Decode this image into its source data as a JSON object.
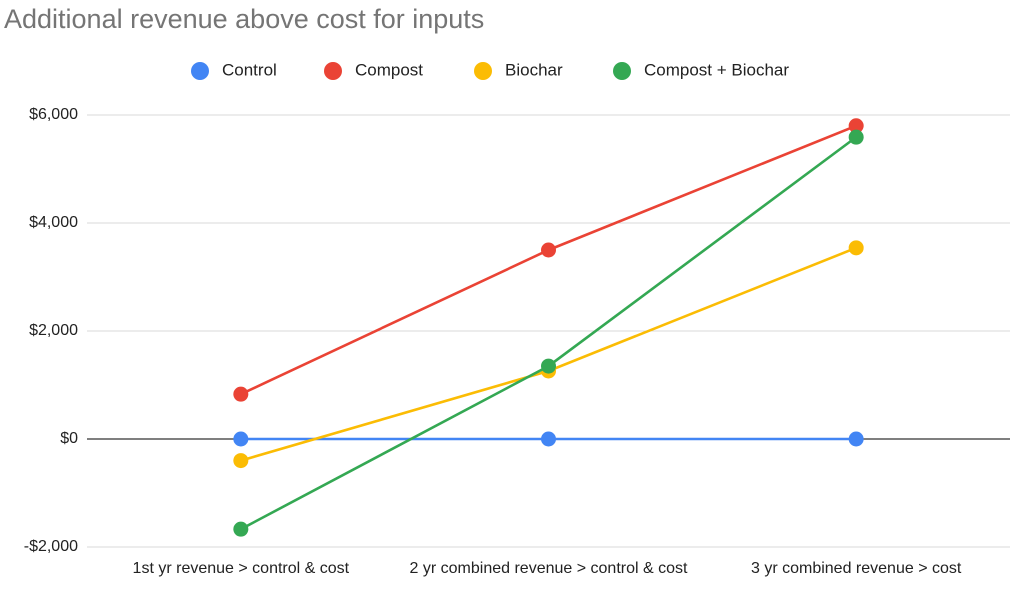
{
  "chart_data": {
    "type": "line",
    "title": "Additional revenue above cost for inputs",
    "categories": [
      "1st yr revenue > control & cost",
      "2 yr combined revenue > control & cost",
      "3 yr combined revenue > cost"
    ],
    "series": [
      {
        "name": "Control",
        "color": "#4285f4",
        "values": [
          0,
          0,
          0
        ]
      },
      {
        "name": "Compost",
        "color": "#ea4335",
        "values": [
          830,
          3500,
          5800
        ]
      },
      {
        "name": "Biochar",
        "color": "#fbbc04",
        "values": [
          -400,
          1260,
          3540
        ]
      },
      {
        "name": "Compost + Biochar",
        "color": "#34a853",
        "values": [
          -1670,
          1350,
          5590
        ]
      }
    ],
    "ylim": [
      -2000,
      6400
    ],
    "yticks": [
      {
        "value": -2000,
        "label": "-$2,000"
      },
      {
        "value": 0,
        "label": "$0"
      },
      {
        "value": 2000,
        "label": "$2,000"
      },
      {
        "value": 4000,
        "label": "$4,000"
      },
      {
        "value": 6000,
        "label": "$6,000"
      }
    ],
    "grid": true,
    "legend": "top"
  }
}
